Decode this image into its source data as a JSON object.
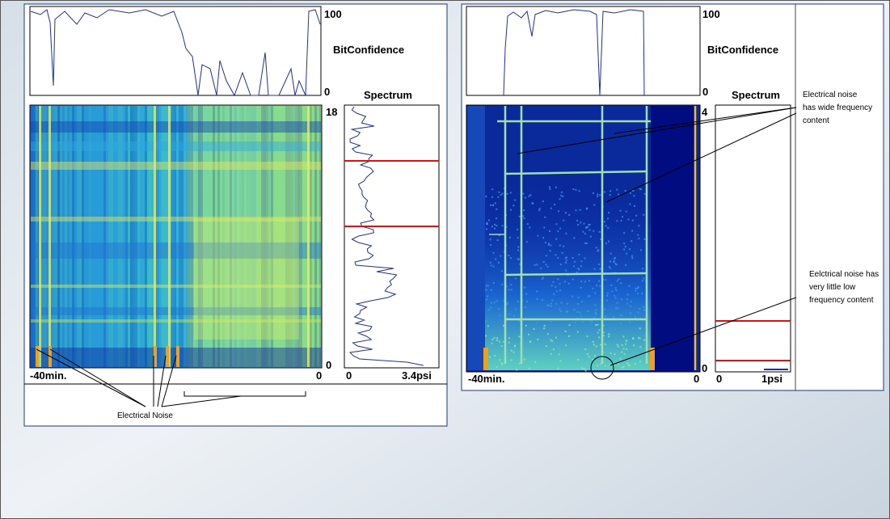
{
  "left_panel": {
    "bit_confidence": {
      "max_label": "100",
      "label": "BitConfidence",
      "min_label": "0"
    },
    "spectrum_title": "Spectrum",
    "spectrogram": {
      "max_label": "18",
      "min_label": "0"
    },
    "x_axis": {
      "start": "-40min.",
      "end": "0"
    },
    "spectrum_axis": {
      "start": "0",
      "end": "3.4psi"
    },
    "annotation": "Electrical Noise"
  },
  "right_panel": {
    "bit_confidence": {
      "max_label": "100",
      "label": "BitConfidence",
      "min_label": "0"
    },
    "spectrum_title": "Spectrum",
    "spectrogram": {
      "max_label": "4",
      "min_label": "0"
    },
    "x_axis": {
      "start": "-40min.",
      "end": "0"
    },
    "spectrum_axis": {
      "start": "0",
      "end": "1psi"
    },
    "annotations": [
      [
        "Electrical noise",
        "has wide frequency",
        "content"
      ],
      [
        "Eelctrical noise has",
        "very little low",
        "frequency content"
      ]
    ]
  }
}
